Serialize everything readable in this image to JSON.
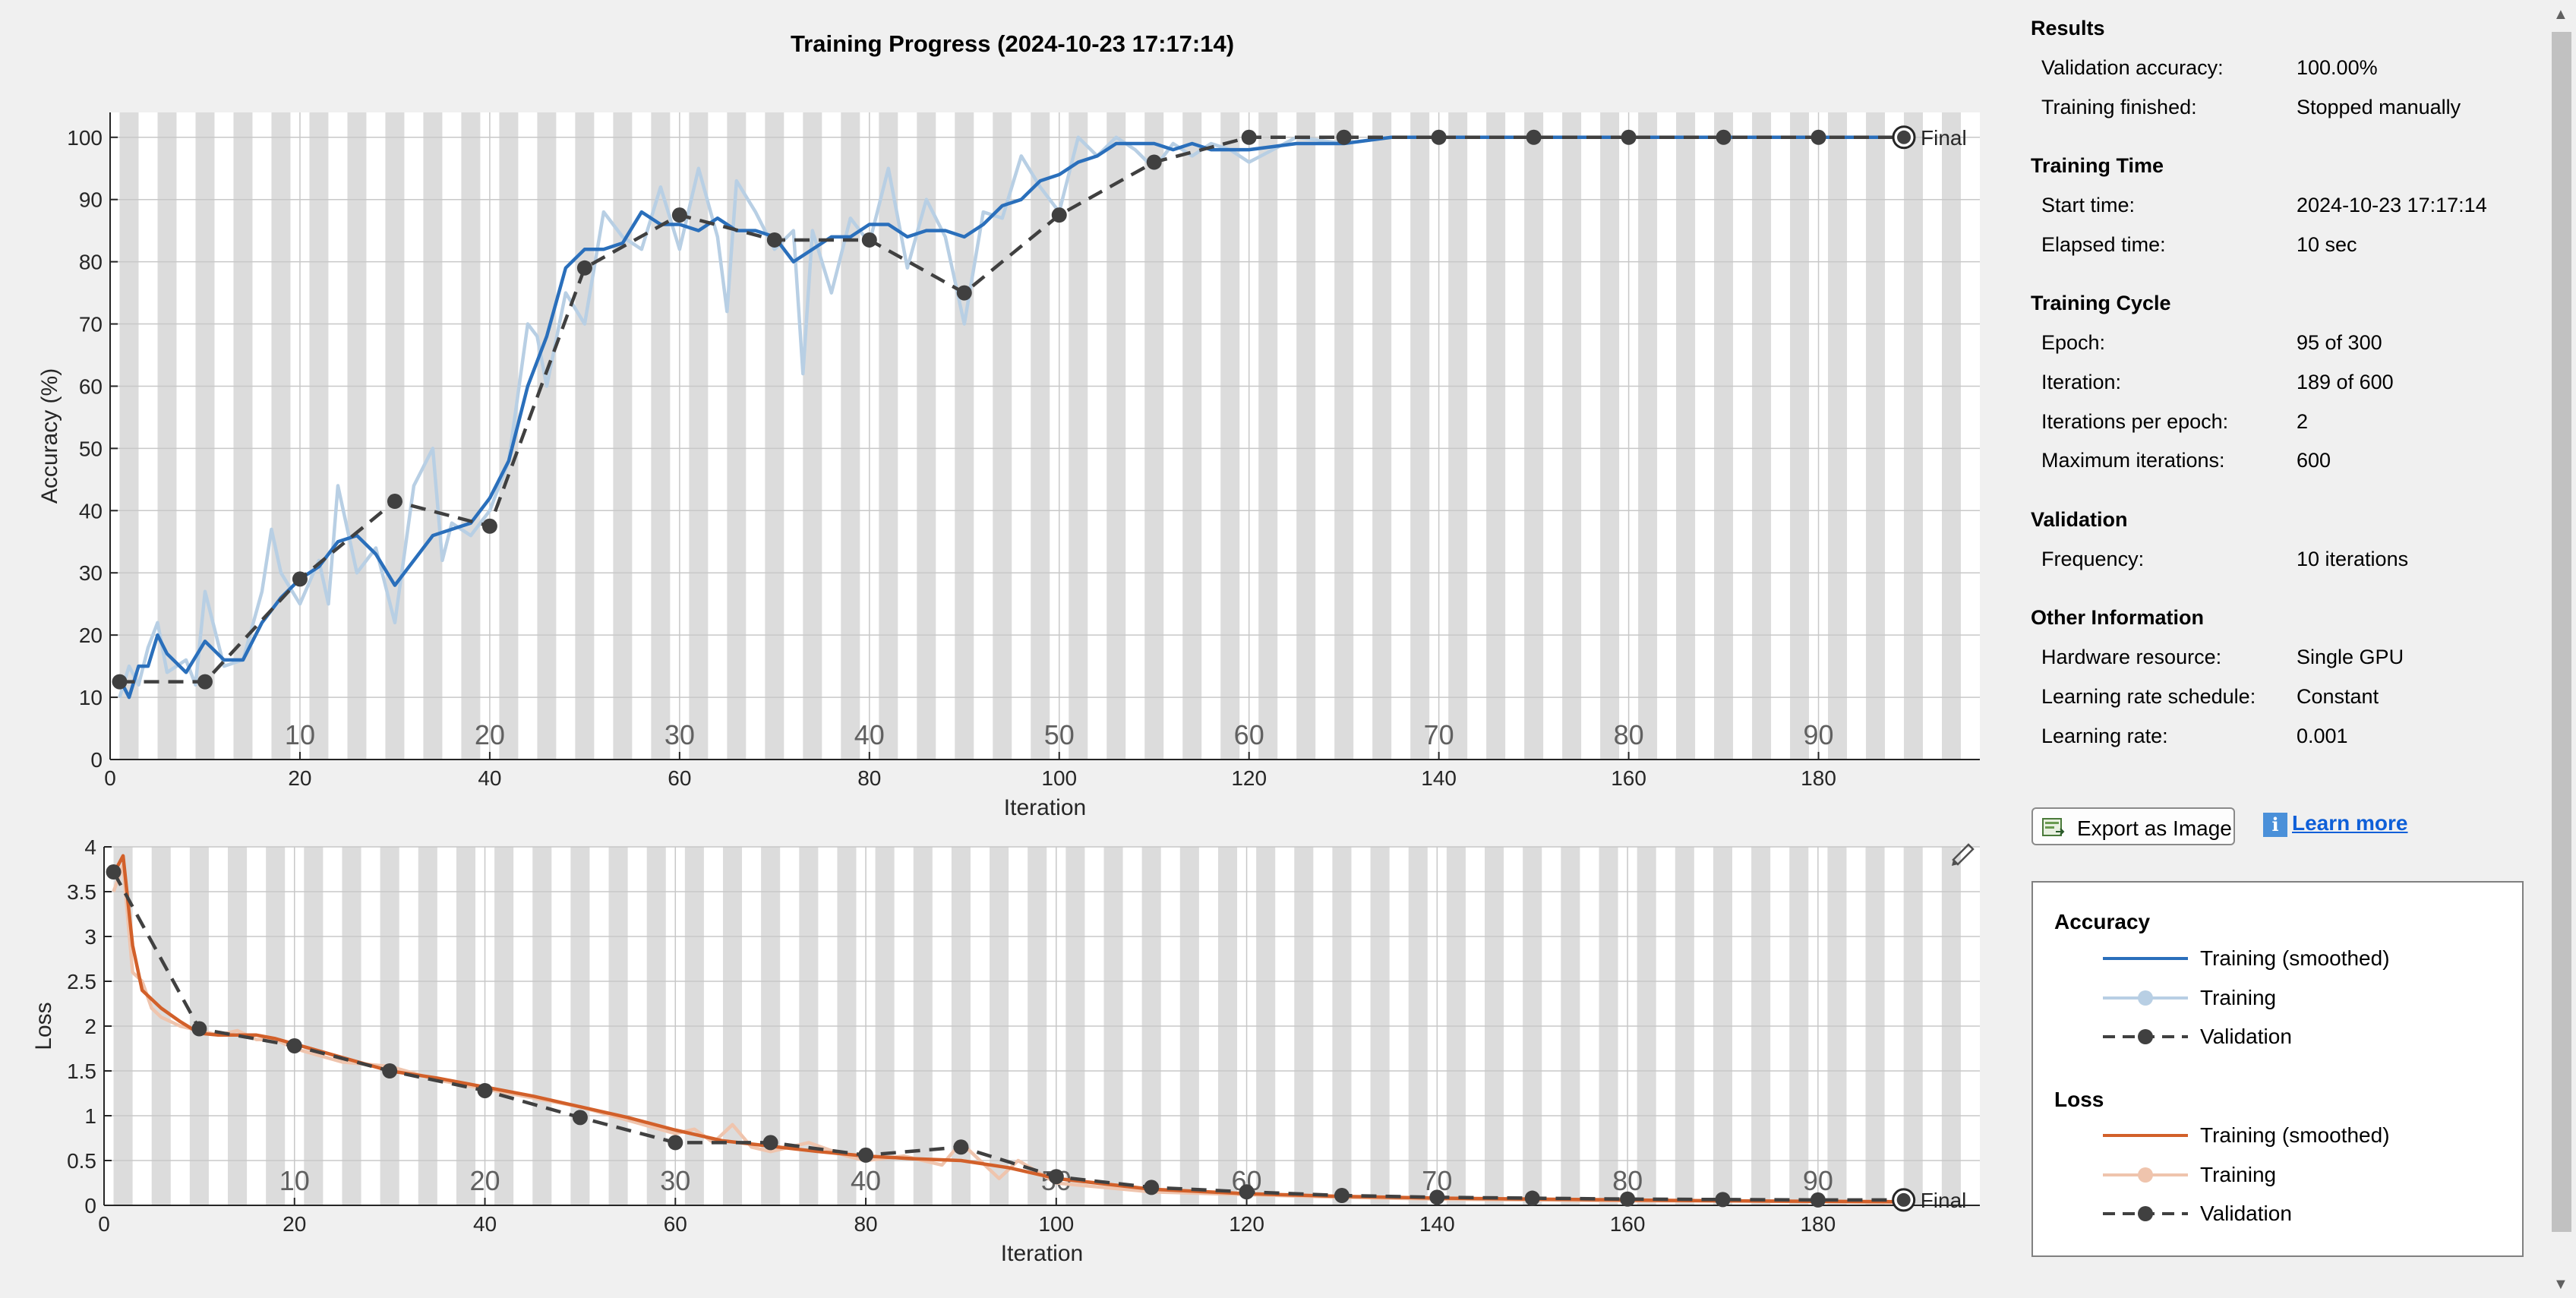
{
  "title": "Training Progress (2024-10-23 17:17:14)",
  "colors": {
    "train_smoothed_acc": "#2a6fbb",
    "train_acc": "#b8cfe4",
    "train_smoothed_loss": "#d2602a",
    "train_loss": "#efc4ad",
    "validation": "#404040",
    "epoch_band": "#dcdcdc"
  },
  "chart_data": [
    {
      "type": "line",
      "name": "accuracy",
      "xlabel": "Iteration",
      "ylabel": "Accuracy (%)",
      "xlim": [
        0,
        197
      ],
      "ylim": [
        0,
        104
      ],
      "xticks": [
        0,
        20,
        40,
        60,
        80,
        100,
        120,
        140,
        160,
        180
      ],
      "yticks": [
        0,
        10,
        20,
        30,
        40,
        50,
        60,
        70,
        80,
        90,
        100
      ],
      "grid": true,
      "epoch_labels": [
        10,
        20,
        30,
        40,
        50,
        60,
        70,
        80,
        90
      ],
      "final_label": "Final",
      "series": [
        {
          "name": "Training (smoothed)",
          "x": [
            1,
            2,
            3,
            4,
            5,
            6,
            8,
            10,
            12,
            14,
            16,
            18,
            20,
            22,
            24,
            26,
            28,
            30,
            32,
            34,
            36,
            38,
            40,
            42,
            44,
            46,
            48,
            50,
            52,
            54,
            56,
            58,
            60,
            62,
            64,
            66,
            68,
            70,
            72,
            74,
            76,
            78,
            80,
            82,
            84,
            86,
            88,
            90,
            92,
            94,
            96,
            98,
            100,
            102,
            104,
            106,
            108,
            110,
            112,
            114,
            116,
            118,
            120,
            125,
            130,
            135,
            140,
            150,
            160,
            170,
            180,
            189
          ],
          "y": [
            13,
            10,
            15,
            15,
            20,
            17,
            14,
            19,
            16,
            16,
            22,
            26,
            29,
            31,
            35,
            36,
            33,
            28,
            32,
            36,
            37,
            38,
            42,
            48,
            60,
            68,
            79,
            82,
            82,
            83,
            88,
            86,
            86,
            85,
            87,
            85,
            85,
            84,
            80,
            82,
            84,
            84,
            86,
            86,
            84,
            85,
            85,
            84,
            86,
            89,
            90,
            93,
            94,
            96,
            97,
            99,
            99,
            99,
            98,
            99,
            98,
            98,
            98,
            99,
            99,
            100,
            100,
            100,
            100,
            100,
            100,
            100
          ]
        },
        {
          "name": "Training",
          "x": [
            1,
            2,
            3,
            4,
            5,
            6,
            8,
            9,
            10,
            12,
            14,
            16,
            17,
            18,
            20,
            22,
            23,
            24,
            26,
            28,
            30,
            32,
            34,
            35,
            36,
            38,
            40,
            42,
            44,
            45,
            46,
            48,
            50,
            52,
            54,
            56,
            58,
            60,
            62,
            64,
            65,
            66,
            68,
            70,
            72,
            73,
            74,
            76,
            78,
            80,
            82,
            84,
            86,
            88,
            90,
            92,
            94,
            96,
            98,
            100,
            102,
            104,
            106,
            108,
            110,
            112,
            114,
            116,
            118,
            120,
            125,
            130,
            135,
            140,
            150,
            160,
            170,
            180,
            189
          ],
          "y": [
            10,
            15,
            12,
            18,
            22,
            14,
            16,
            12,
            27,
            15,
            16,
            27,
            37,
            30,
            25,
            32,
            25,
            44,
            30,
            34,
            22,
            44,
            50,
            32,
            38,
            36,
            40,
            48,
            70,
            68,
            60,
            75,
            70,
            88,
            84,
            82,
            92,
            82,
            95,
            84,
            72,
            93,
            88,
            82,
            85,
            62,
            85,
            75,
            87,
            83,
            95,
            79,
            90,
            84,
            70,
            88,
            87,
            97,
            92,
            88,
            100,
            97,
            100,
            98,
            95,
            99,
            97,
            99,
            98,
            96,
            100,
            99,
            100,
            100,
            100,
            100,
            100,
            100,
            100
          ]
        },
        {
          "name": "Validation",
          "x": [
            1,
            10,
            20,
            30,
            40,
            50,
            60,
            70,
            80,
            90,
            100,
            110,
            120,
            130,
            140,
            150,
            160,
            170,
            180,
            189
          ],
          "y": [
            12.5,
            12.5,
            29,
            41.5,
            37.5,
            79,
            87.5,
            83.5,
            83.5,
            75,
            87.5,
            96,
            100,
            100,
            100,
            100,
            100,
            100,
            100,
            100
          ]
        }
      ]
    },
    {
      "type": "line",
      "name": "loss",
      "xlabel": "Iteration",
      "ylabel": "Loss",
      "xlim": [
        0,
        197
      ],
      "ylim": [
        0,
        4
      ],
      "xticks": [
        0,
        20,
        40,
        60,
        80,
        100,
        120,
        140,
        160,
        180
      ],
      "yticks": [
        0,
        0.5,
        1,
        1.5,
        2,
        2.5,
        3,
        3.5,
        4
      ],
      "grid": true,
      "epoch_labels": [
        10,
        20,
        30,
        40,
        50,
        60,
        70,
        80,
        90
      ],
      "final_label": "Final",
      "series": [
        {
          "name": "Training (smoothed)",
          "x": [
            1,
            2,
            3,
            4,
            5,
            6,
            8,
            10,
            12,
            14,
            16,
            18,
            20,
            25,
            30,
            35,
            40,
            45,
            50,
            55,
            60,
            65,
            70,
            75,
            80,
            85,
            90,
            95,
            100,
            110,
            120,
            130,
            140,
            150,
            160,
            170,
            180,
            189
          ],
          "y": [
            3.7,
            3.9,
            2.9,
            2.4,
            2.3,
            2.2,
            2.05,
            1.92,
            1.9,
            1.9,
            1.9,
            1.86,
            1.8,
            1.65,
            1.5,
            1.42,
            1.32,
            1.22,
            1.1,
            0.98,
            0.84,
            0.72,
            0.66,
            0.6,
            0.55,
            0.52,
            0.5,
            0.42,
            0.3,
            0.18,
            0.13,
            0.1,
            0.08,
            0.07,
            0.06,
            0.05,
            0.045,
            0.04
          ]
        },
        {
          "name": "Training",
          "x": [
            1,
            2,
            3,
            4,
            5,
            6,
            8,
            10,
            12,
            14,
            16,
            18,
            20,
            25,
            30,
            35,
            40,
            45,
            50,
            55,
            60,
            62,
            64,
            66,
            68,
            70,
            74,
            78,
            80,
            84,
            88,
            90,
            92,
            94,
            96,
            100,
            110,
            120,
            130,
            140,
            150,
            160,
            170,
            180,
            189
          ],
          "y": [
            3.5,
            3.8,
            2.6,
            2.5,
            2.2,
            2.1,
            2.0,
            1.95,
            1.9,
            1.95,
            1.85,
            1.85,
            1.75,
            1.6,
            1.55,
            1.4,
            1.3,
            1.2,
            1.1,
            0.95,
            0.8,
            0.85,
            0.7,
            0.9,
            0.65,
            0.6,
            0.7,
            0.55,
            0.5,
            0.55,
            0.45,
            0.7,
            0.5,
            0.3,
            0.5,
            0.25,
            0.15,
            0.12,
            0.09,
            0.07,
            0.06,
            0.05,
            0.05,
            0.04,
            0.03
          ]
        },
        {
          "name": "Validation",
          "x": [
            1,
            10,
            20,
            30,
            40,
            50,
            60,
            70,
            80,
            90,
            100,
            110,
            120,
            130,
            140,
            150,
            160,
            170,
            180,
            189
          ],
          "y": [
            3.72,
            1.97,
            1.78,
            1.5,
            1.28,
            0.98,
            0.7,
            0.7,
            0.56,
            0.65,
            0.32,
            0.2,
            0.15,
            0.11,
            0.09,
            0.08,
            0.07,
            0.065,
            0.06,
            0.06
          ]
        }
      ]
    }
  ],
  "info": {
    "results_title": "Results",
    "val_acc_label": "Validation accuracy:",
    "val_acc_value": "100.00%",
    "finished_label": "Training finished:",
    "finished_value": "Stopped manually",
    "time_title": "Training Time",
    "start_label": "Start time:",
    "start_value": "2024-10-23 17:17:14",
    "elapsed_label": "Elapsed time:",
    "elapsed_value": "10 sec",
    "cycle_title": "Training Cycle",
    "epoch_label": "Epoch:",
    "epoch_value": "95 of 300",
    "iter_label": "Iteration:",
    "iter_value": "189 of 600",
    "ipe_label": "Iterations per epoch:",
    "ipe_value": "2",
    "maxit_label": "Maximum iterations:",
    "maxit_value": "600",
    "validation_title": "Validation",
    "freq_label": "Frequency:",
    "freq_value": "10 iterations",
    "other_title": "Other Information",
    "hw_label": "Hardware resource:",
    "hw_value": "Single GPU",
    "lrs_label": "Learning rate schedule:",
    "lrs_value": "Constant",
    "lr_label": "Learning rate:",
    "lr_value": "0.001"
  },
  "buttons": {
    "export_label": "Export as Image",
    "learn_more_label": "Learn more"
  },
  "legend": {
    "accuracy_title": "Accuracy",
    "loss_title": "Loss",
    "training_smoothed": "Training (smoothed)",
    "training": "Training",
    "validation": "Validation"
  }
}
